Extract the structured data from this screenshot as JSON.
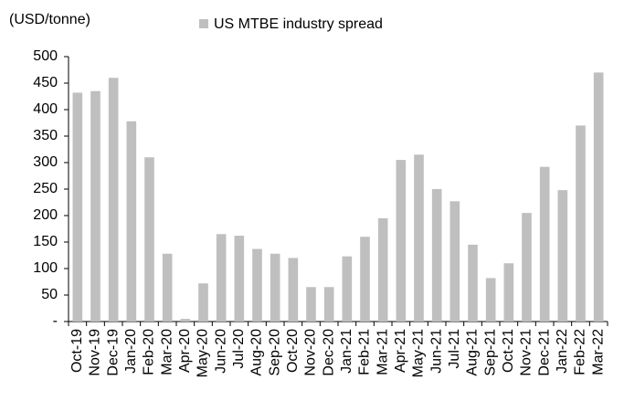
{
  "chart_data": {
    "type": "bar",
    "unit_label": "(USD/tonne)",
    "categories": [
      "Oct-19",
      "Nov-19",
      "Dec-19",
      "Jan-20",
      "Feb-20",
      "Mar-20",
      "Apr-20",
      "May-20",
      "Jun-20",
      "Jul-20",
      "Aug-20",
      "Sep-20",
      "Oct-20",
      "Nov-20",
      "Dec-20",
      "Jan-21",
      "Feb-21",
      "Mar-21",
      "Apr-21",
      "May-21",
      "Jun-21",
      "Jul-21",
      "Aug-21",
      "Sep-21",
      "Oct-21",
      "Nov-21",
      "Dec-21",
      "Jan-22",
      "Feb-22",
      "Mar-22"
    ],
    "series": [
      {
        "name": "US MTBE industry spread",
        "color": "#bfbfbf",
        "values": [
          432,
          435,
          460,
          378,
          310,
          128,
          5,
          72,
          165,
          162,
          137,
          128,
          120,
          65,
          65,
          123,
          160,
          195,
          305,
          315,
          250,
          227,
          145,
          82,
          110,
          205,
          292,
          248,
          370,
          470
        ]
      }
    ],
    "ylim": [
      0,
      500
    ],
    "yticks": [
      {
        "value": 0,
        "label": "-"
      },
      50,
      100,
      150,
      200,
      250,
      300,
      350,
      400,
      450,
      500
    ],
    "legend": "top"
  }
}
